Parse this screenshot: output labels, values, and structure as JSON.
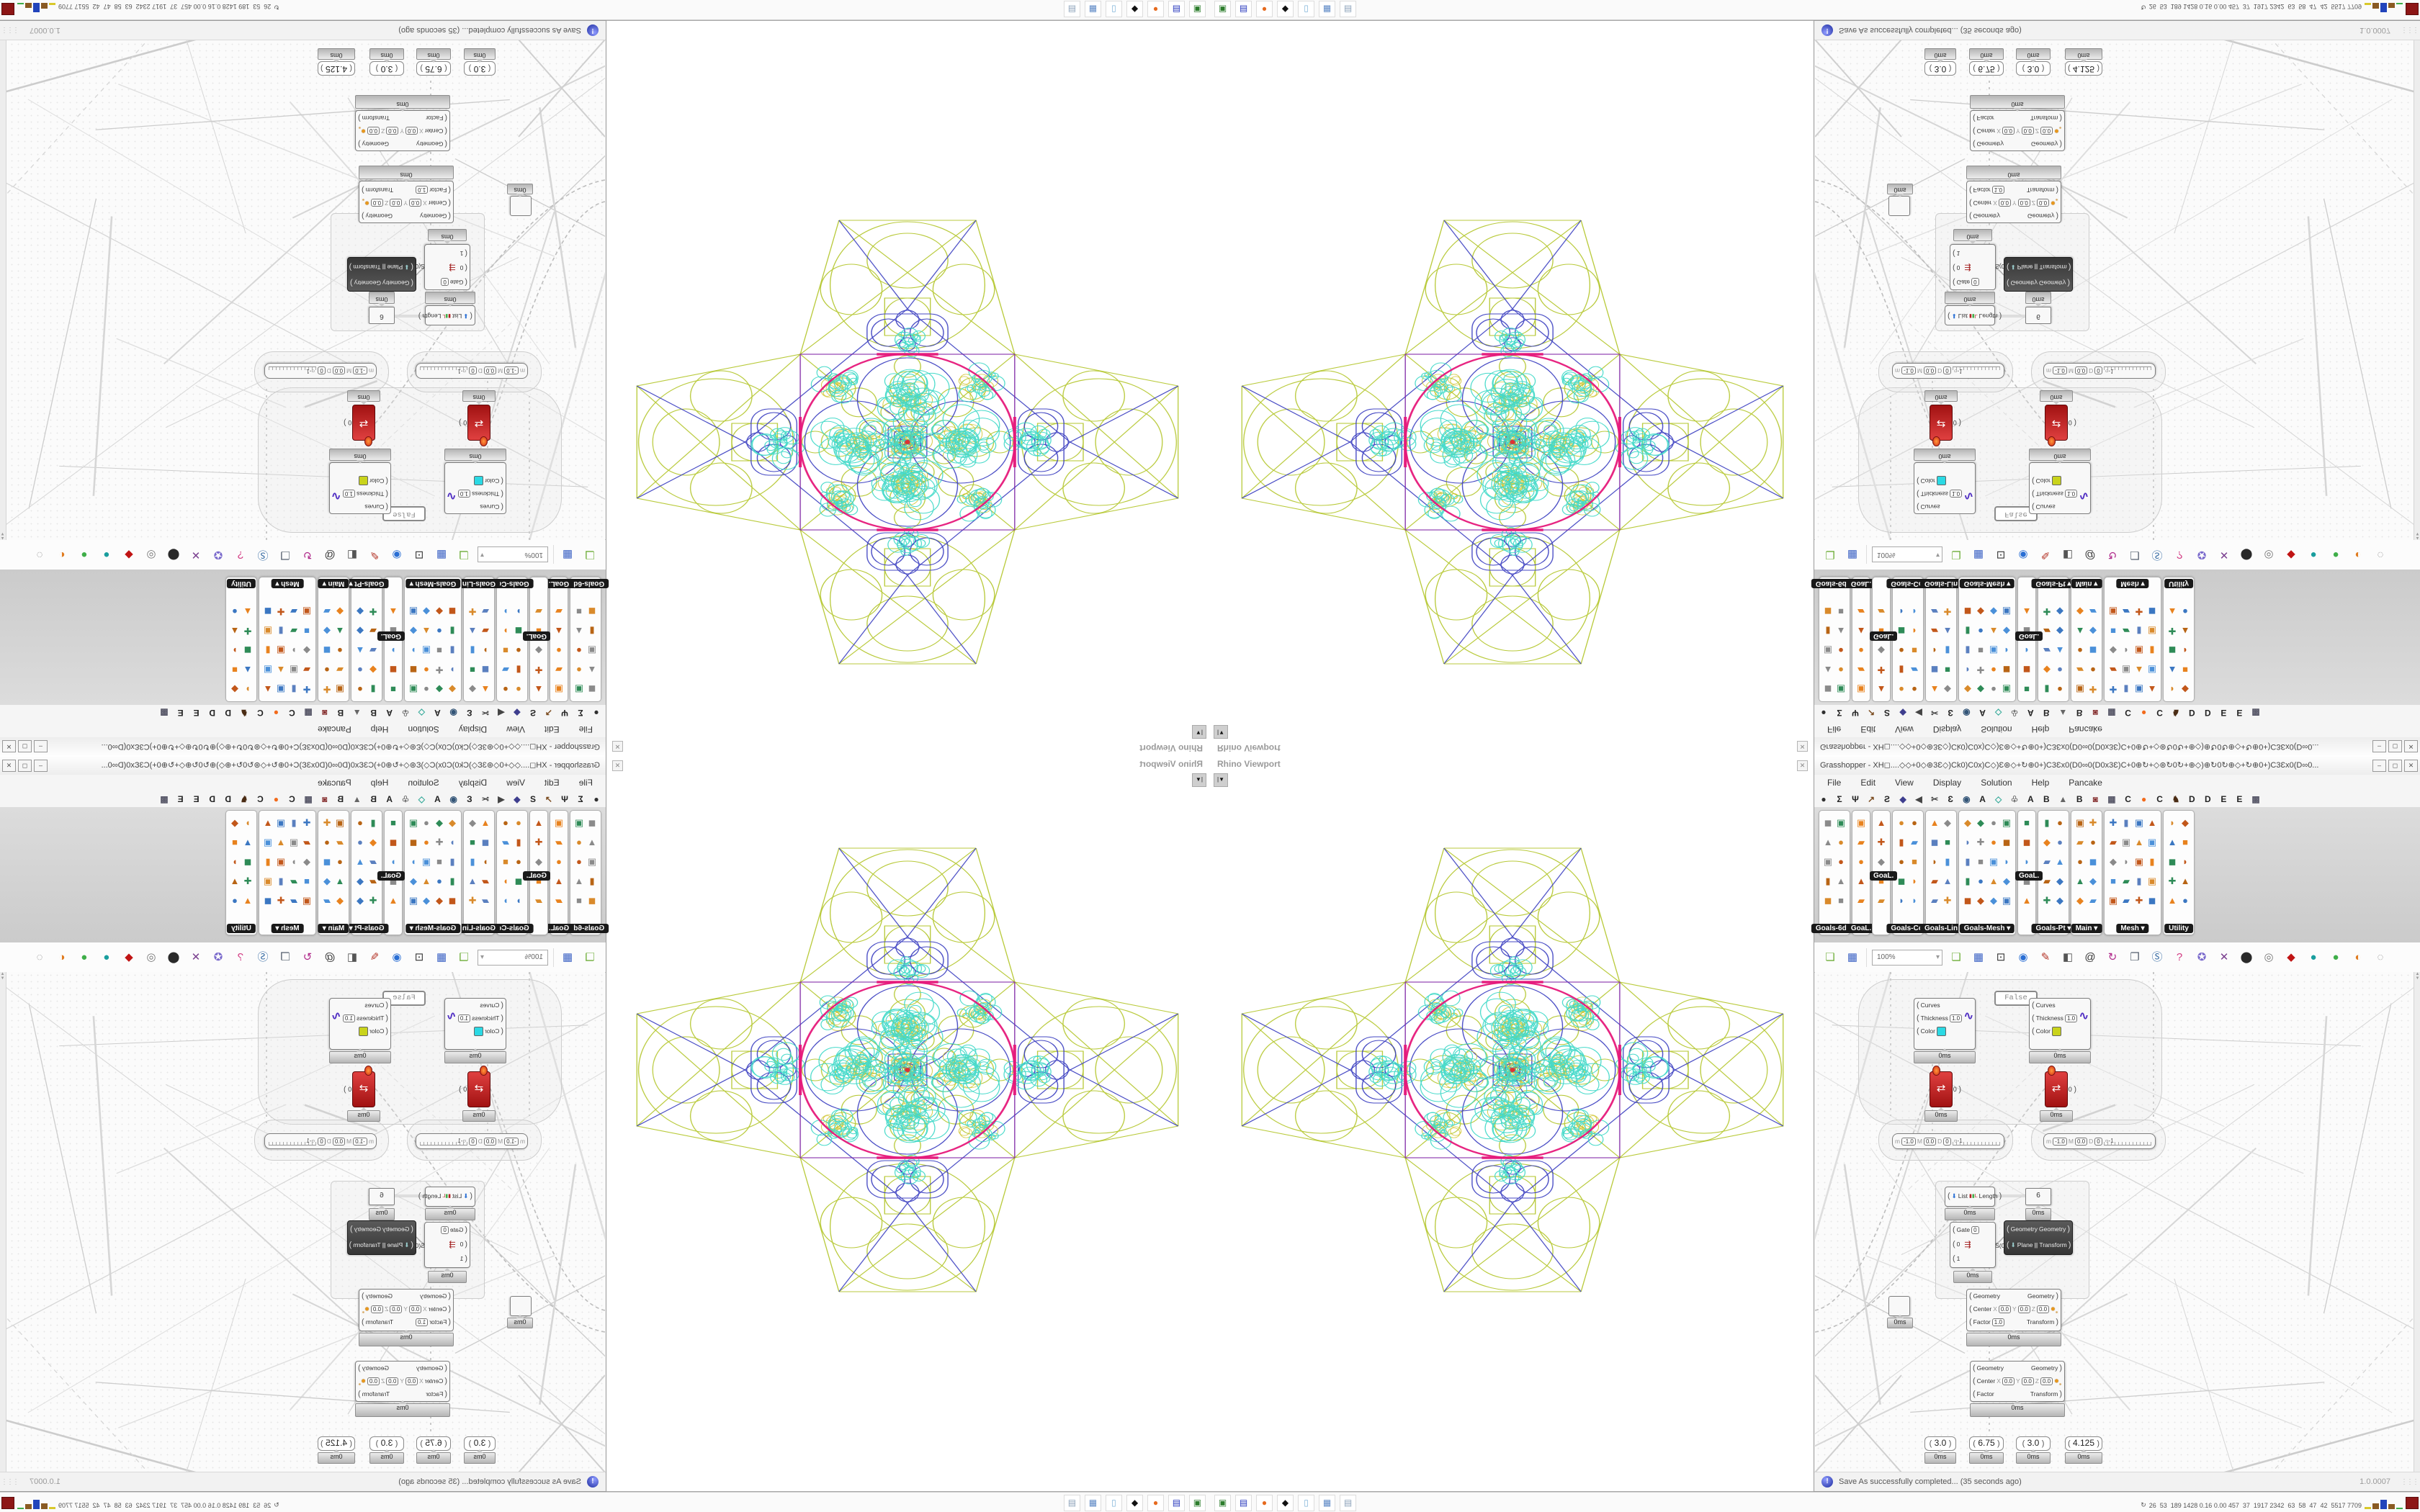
{
  "viewport": {
    "title": "Rhino Viewport"
  },
  "gh": {
    "title": "Grasshopper - XH◻....◇◇+0◇⊛3Ɛ◇)Ck0)C0x)C◇)Ɛ⊛◇+↻⊕0+)C3Ɛx0(D0∞0(D0x3Ɛ)C+0⊕↻+◇⊛↻0↻+⊕◇)⊕↻0↻⊕◇+↻⊕0+)C3Ɛx0(D∞0...",
    "window_buttons": [
      "–",
      "◻",
      "✕"
    ],
    "menus": [
      "File",
      "Edit",
      "View",
      "Display",
      "Solution",
      "Help",
      "Pancake"
    ],
    "tabs": [
      {
        "g": "●",
        "c": "#2f2f2f"
      },
      {
        "g": "Σ",
        "c": "#222"
      },
      {
        "g": "Ψ",
        "c": "#222"
      },
      {
        "g": "↗",
        "c": "#7a4b1e"
      },
      {
        "g": "Ƨ",
        "c": "#222"
      },
      {
        "g": "◆",
        "c": "#3e3e8e"
      },
      {
        "g": "◀",
        "c": "#444"
      },
      {
        "g": "✂",
        "c": "#444"
      },
      {
        "g": "Ɛ",
        "c": "#222"
      },
      {
        "g": "◉",
        "c": "#335577"
      },
      {
        "g": "A",
        "c": "#222"
      },
      {
        "g": "◇",
        "c": "#3fae9e"
      },
      {
        "g": "♧",
        "c": "#555"
      },
      {
        "g": "A",
        "c": "#222"
      },
      {
        "g": "B",
        "c": "#222"
      },
      {
        "g": "▲",
        "c": "#666"
      },
      {
        "g": "B",
        "c": "#222"
      },
      {
        "g": "◙",
        "c": "#883333"
      },
      {
        "g": "▦",
        "c": "#556"
      },
      {
        "g": "C",
        "c": "#222"
      },
      {
        "g": "●",
        "c": "#f26a1b"
      },
      {
        "g": "C",
        "c": "#222"
      },
      {
        "g": "♞",
        "c": "#4a2c14"
      },
      {
        "g": "D",
        "c": "#222"
      },
      {
        "g": "D",
        "c": "#222"
      },
      {
        "g": "E",
        "c": "#222"
      },
      {
        "g": "E",
        "c": "#222"
      },
      {
        "g": "▩",
        "c": "#556"
      }
    ],
    "groups": [
      {
        "label": "Goals-6dof",
        "cols": 2
      },
      {
        "label": "GoaL.",
        "cols": 1
      },
      {
        "label": "",
        "cols": 1,
        "float_label": "GoaL."
      },
      {
        "label": "Goals-Col",
        "cols": 2
      },
      {
        "label": "Goals-Lin",
        "cols": 2
      },
      {
        "label": "Goals-Mesh ▾",
        "cols": 4
      },
      {
        "label": "",
        "cols": 1,
        "float_label": "GoaL."
      },
      {
        "label": "Goals-Pt ▾",
        "cols": 2
      },
      {
        "label": "Main ▾",
        "cols": 2
      },
      {
        "label": "Mesh ▾",
        "cols": 4
      },
      {
        "label": "Utility",
        "cols": 2
      }
    ],
    "canvas_toolbar": {
      "zoom": "100%",
      "icons": [
        {
          "name": "open-file-icon",
          "g": "❏",
          "c": "#6fae3a"
        },
        {
          "name": "save-icon",
          "g": "▦",
          "c": "#3b62c4"
        },
        {
          "name": "zoom-extents-icon",
          "g": "⊡",
          "c": "#333"
        },
        {
          "name": "preview-eye-icon",
          "g": "◉",
          "c": "#2a6fd4"
        },
        {
          "name": "sketch-pen-icon",
          "g": "✎",
          "c": "#b33326"
        },
        {
          "name": "exit-door-icon",
          "g": "◧",
          "c": "#555"
        },
        {
          "name": "obscure-at-icon",
          "g": "@",
          "c": "#333"
        },
        {
          "name": "gha-installer-icon",
          "g": "↻",
          "c": "#b0298a"
        },
        {
          "name": "window-browser-icon",
          "g": "❐",
          "c": "#55606e"
        },
        {
          "name": "finder-icon",
          "g": "Ⓢ",
          "c": "#3a6ea5"
        },
        {
          "name": "help-icon",
          "g": "?",
          "c": "#d23a82"
        },
        {
          "name": "balloon-icon",
          "g": "✪",
          "c": "#7a6acc"
        },
        {
          "name": "galapagos-icon",
          "g": "✕",
          "c": "#7a3f8f"
        },
        {
          "name": "cluster-icon",
          "g": "⬤",
          "c": "#2a2a2a"
        },
        {
          "name": "rings-icon",
          "g": "◎",
          "c": "#777"
        },
        {
          "name": "gem-icon",
          "g": "◆",
          "c": "#c01414"
        },
        {
          "name": "ball-teal-icon",
          "g": "●",
          "c": "#1a9e9e"
        },
        {
          "name": "ball-green-icon",
          "g": "●",
          "c": "#3fae49"
        },
        {
          "name": "ball-orange-icon",
          "g": "◐",
          "c": "#e07b1f"
        },
        {
          "name": "selection-lasso-icon",
          "g": "◌",
          "c": "#888"
        }
      ]
    },
    "status": {
      "message": "Save As successfully completed... (35 seconds ago)",
      "version": "1.0.0007"
    },
    "components": {
      "toggle": "False",
      "preview": {
        "in1": "Curves",
        "in2": "Thickness",
        "thickness": "1.0",
        "in3": "Color",
        "color_left": "#2bd9e4",
        "color_right": "#c9d31b"
      },
      "red_output": "0",
      "md": {
        "m_label": "m",
        "m": "-1.0",
        "M_label": "M",
        "M": "0.0",
        "D_label": "D",
        "D": "0",
        "tick": "-1"
      },
      "list_length": {
        "in": "List",
        "out": "Length"
      },
      "panel_value": "6",
      "gate": {
        "in1": "Gate",
        "gv": "0",
        "a": "0",
        "b": "1",
        "out": "S(0)"
      },
      "orient": {
        "in1": "Geometry",
        "in2": "Plane",
        "icon": "||",
        "out1": "Geometry",
        "out2": "Transform"
      },
      "scale": {
        "in1": "Geometry",
        "center": "Center",
        "x": "X",
        "xv": "0.0",
        "y": "Y",
        "yv": "0.0",
        "z": "Z",
        "zv": "0.0",
        "factor": "Factor",
        "fv": "1.0",
        "out1": "Geometry",
        "out2": "Transform"
      },
      "sliders": [
        "3.0",
        "6.75",
        "3.0",
        "4.125"
      ],
      "ms": "0ms"
    }
  },
  "taskbar": {
    "icons": [
      {
        "name": "device-icon",
        "g": "▣",
        "c": "#2d7d2d"
      },
      {
        "name": "floppy64-icon",
        "g": "▤",
        "c": "#2233bb"
      },
      {
        "name": "firefox-icon",
        "g": "●",
        "c": "#e66a1e"
      },
      {
        "name": "inkscape-icon",
        "g": "◆",
        "c": "#111111"
      },
      {
        "name": "notepad-icon",
        "g": "▯",
        "c": "#7fb2d8"
      },
      {
        "name": "calculator-icon",
        "g": "▦",
        "c": "#5b87c5"
      },
      {
        "name": "documents-icon",
        "g": "▤",
        "c": "#8aa0b8"
      }
    ],
    "stats_icon": "↻",
    "stats": "26  53  189 1428 0.16 0.00 457  37  1917 2342  63  58  47  42  5517 7709",
    "bars": [
      {
        "c": "#d8c82a",
        "h": 3
      },
      {
        "c": "#8a5a22",
        "h": 8
      },
      {
        "c": "#2244bb",
        "h": 13
      },
      {
        "c": "#8a5a22",
        "h": 7
      },
      {
        "c": "#3fae49",
        "h": 2
      }
    ]
  },
  "fractal": {
    "chartreuse": "#b6c832",
    "blue": "#3a3ec0",
    "cyan": "#3fd9c8",
    "magenta": "#e6187a",
    "purple": "#7b1fa2",
    "yellow": "#cfc32a",
    "red": "#dd3333"
  }
}
